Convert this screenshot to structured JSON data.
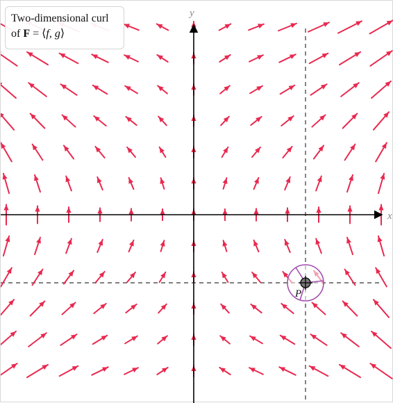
{
  "title": {
    "line1": "Two-dimensional curl",
    "line2_prefix": "of ",
    "line2_bold": "F",
    "line2_eq": " = ⟨",
    "line2_f": "f",
    "line2_comma": ", ",
    "line2_g": "g",
    "line2_close": "⟩"
  },
  "axes": {
    "x_label": "x",
    "y_label": "y"
  },
  "point": {
    "label": "P"
  },
  "colors": {
    "arrow": "#e8294f",
    "axis": "#000000",
    "dashed": "#333333",
    "circle": "#a24fb0",
    "title_border": "#d4d4d4"
  },
  "icons": {
    "point_marker": "crosshair-point-icon",
    "curl_indicator": "paddlewheel-icon"
  }
}
